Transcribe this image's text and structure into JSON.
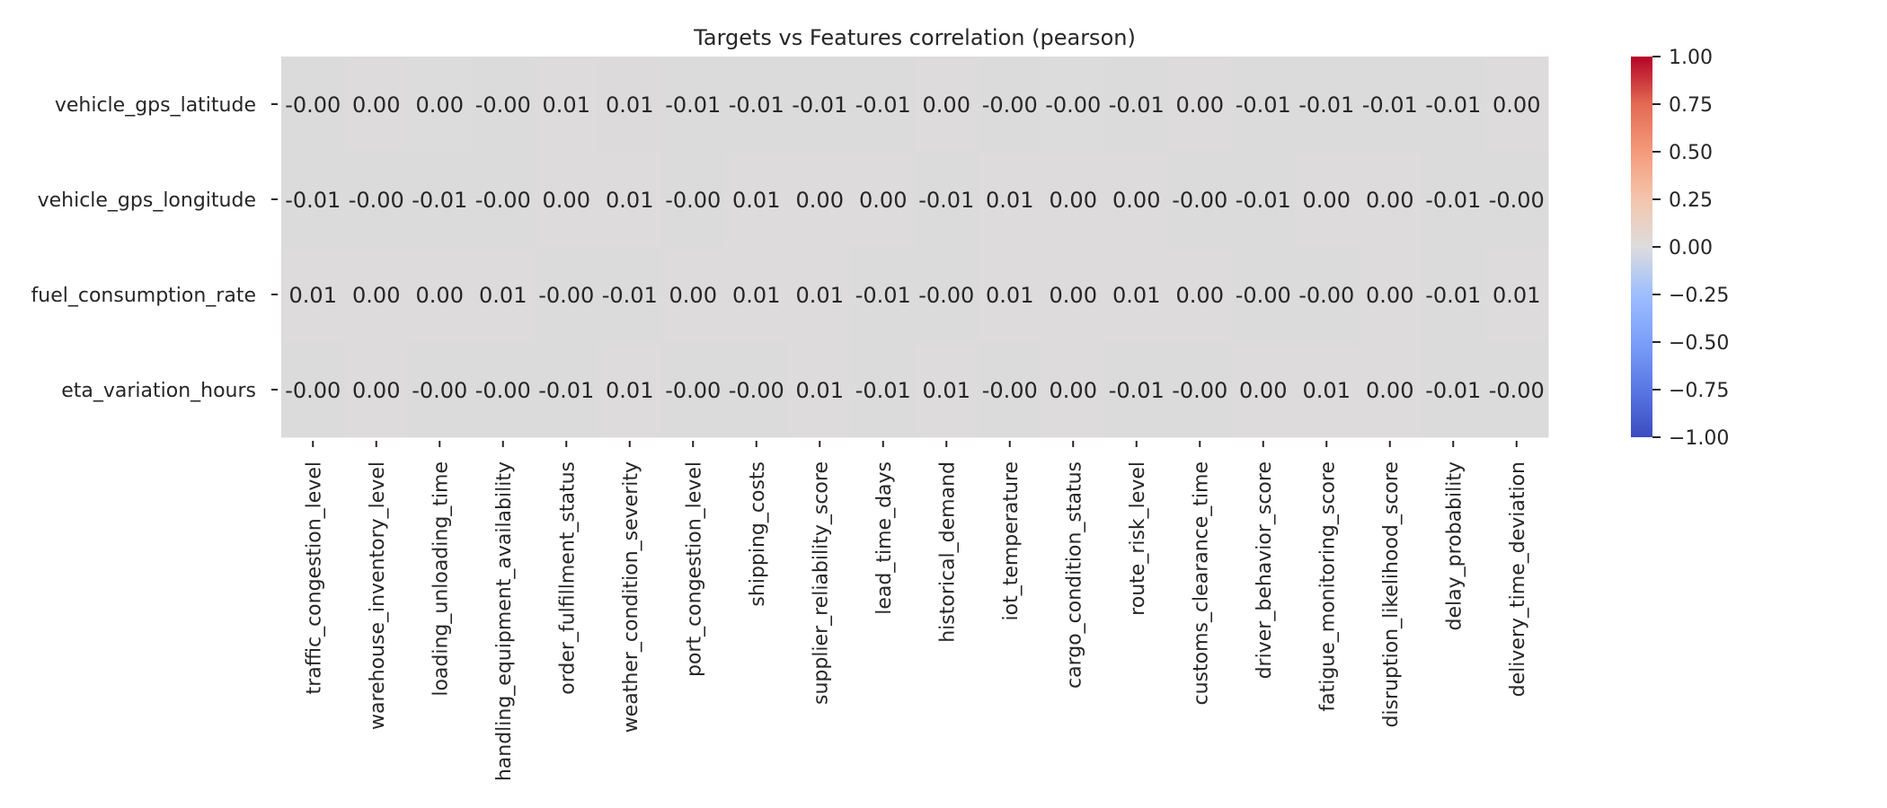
{
  "chart_data": {
    "type": "heatmap",
    "title": "Targets vs Features correlation (pearson)",
    "rows": [
      "vehicle_gps_latitude",
      "vehicle_gps_longitude",
      "fuel_consumption_rate",
      "eta_variation_hours"
    ],
    "columns": [
      "traffic_congestion_level",
      "warehouse_inventory_level",
      "loading_unloading_time",
      "handling_equipment_availability",
      "order_fulfillment_status",
      "weather_condition_severity",
      "port_congestion_level",
      "shipping_costs",
      "supplier_reliability_score",
      "lead_time_days",
      "historical_demand",
      "iot_temperature",
      "cargo_condition_status",
      "route_risk_level",
      "customs_clearance_time",
      "driver_behavior_score",
      "fatigue_monitoring_score",
      "disruption_likelihood_score",
      "delay_probability",
      "delivery_time_deviation"
    ],
    "values": [
      [
        -0.004,
        0.003,
        0.002,
        -0.004,
        0.006,
        0.007,
        -0.006,
        -0.006,
        -0.006,
        -0.006,
        0.004,
        -0.004,
        -0.003,
        -0.006,
        0.003,
        -0.006,
        -0.006,
        -0.006,
        -0.006,
        0.004
      ],
      [
        -0.006,
        -0.004,
        -0.006,
        -0.004,
        0.004,
        0.006,
        -0.004,
        0.006,
        0.003,
        0.003,
        -0.006,
        0.006,
        0.003,
        0.003,
        -0.004,
        -0.006,
        0.003,
        0.003,
        -0.006,
        -0.004
      ],
      [
        0.006,
        0.003,
        0.003,
        0.006,
        -0.004,
        -0.006,
        0.003,
        0.006,
        0.006,
        -0.006,
        -0.004,
        0.006,
        0.003,
        0.006,
        0.003,
        -0.004,
        -0.004,
        0.003,
        -0.006,
        0.006
      ],
      [
        -0.004,
        0.003,
        -0.004,
        -0.004,
        -0.006,
        0.006,
        -0.004,
        -0.004,
        0.006,
        -0.006,
        0.006,
        -0.004,
        0.003,
        -0.006,
        -0.004,
        0.003,
        0.006,
        0.003,
        -0.006,
        -0.004
      ]
    ],
    "cell_labels": [
      [
        "-0.00",
        "0.00",
        "0.00",
        "-0.00",
        "0.01",
        "0.01",
        "-0.01",
        "-0.01",
        "-0.01",
        "-0.01",
        "0.00",
        "-0.00",
        "-0.00",
        "-0.01",
        "0.00",
        "-0.01",
        "-0.01",
        "-0.01",
        "-0.01",
        "0.00"
      ],
      [
        "-0.01",
        "-0.00",
        "-0.01",
        "-0.00",
        "0.00",
        "0.01",
        "-0.00",
        "0.01",
        "0.00",
        "0.00",
        "-0.01",
        "0.01",
        "0.00",
        "0.00",
        "-0.00",
        "-0.01",
        "0.00",
        "0.00",
        "-0.01",
        "-0.00"
      ],
      [
        "0.01",
        "0.00",
        "0.00",
        "0.01",
        "-0.00",
        "-0.01",
        "0.00",
        "0.01",
        "0.01",
        "-0.01",
        "-0.00",
        "0.01",
        "0.00",
        "0.01",
        "0.00",
        "-0.00",
        "-0.00",
        "0.00",
        "-0.01",
        "0.01"
      ],
      [
        "-0.00",
        "0.00",
        "-0.00",
        "-0.00",
        "-0.01",
        "0.01",
        "-0.00",
        "-0.00",
        "0.01",
        "-0.01",
        "0.01",
        "-0.00",
        "0.00",
        "-0.01",
        "-0.00",
        "0.00",
        "0.01",
        "0.00",
        "-0.01",
        "-0.00"
      ]
    ],
    "colorbar": {
      "colormap": "coolwarm",
      "vmin": -1.0,
      "vmax": 1.0,
      "ticks": [
        1.0,
        0.75,
        0.5,
        0.25,
        0.0,
        -0.25,
        -0.5,
        -0.75,
        -1.0
      ],
      "tick_labels": [
        "1.00",
        "0.75",
        "0.50",
        "0.25",
        "0.00",
        "−0.25",
        "−0.50",
        "−0.75",
        "−1.00"
      ]
    }
  }
}
